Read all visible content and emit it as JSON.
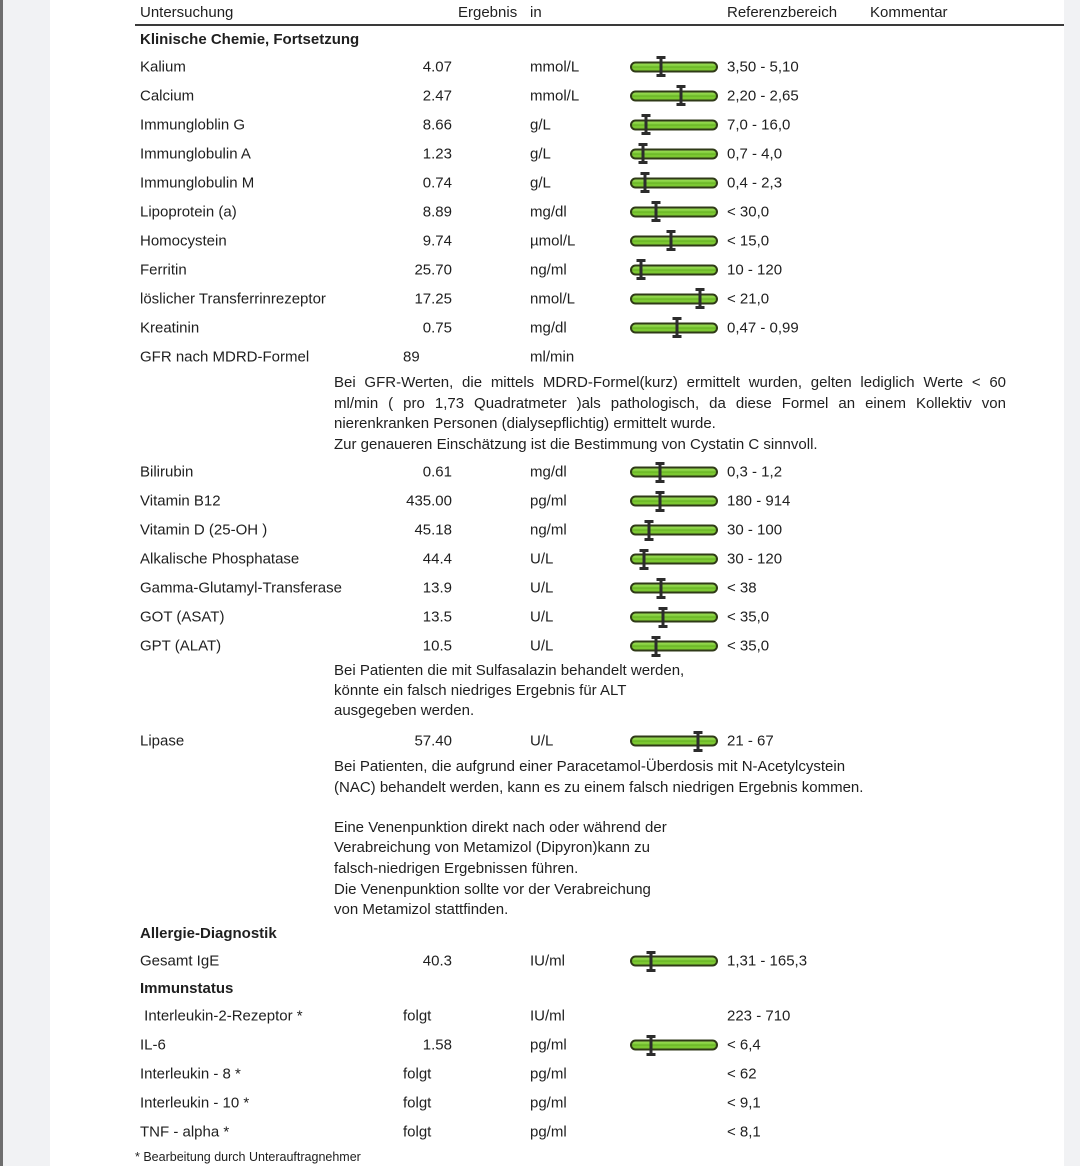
{
  "header": {
    "col_untersuchung": "Untersuchung",
    "col_ergebnis": "Ergebnis",
    "col_in": "in",
    "col_referenzbereich": "Referenzbereich",
    "col_kommentar": "Kommentar"
  },
  "colors": {
    "bar_fill": "#7cc832",
    "bar_border": "#2f3a17",
    "marker": "#2c2c2c",
    "text": "#1f1f1f",
    "page_margin": "#f1f2f4"
  },
  "rows": [
    {
      "type": "section",
      "label": "Klinische Chemie, Fortsetzung"
    },
    {
      "type": "result",
      "name": "Kalium",
      "value": "4.07",
      "unit": "mmol/L",
      "ref": "3,50 - 5,10",
      "marker": 0.35
    },
    {
      "type": "result",
      "name": "Calcium",
      "value": "2.47",
      "unit": "mmol/L",
      "ref": "2,20 - 2,65",
      "marker": 0.58
    },
    {
      "type": "result",
      "name": "Immungloblin G",
      "value": "8.66",
      "unit": "g/L",
      "ref": "7,0 - 16,0",
      "marker": 0.18
    },
    {
      "type": "result",
      "name": "Immunglobulin A",
      "value": "1.23",
      "unit": "g/L",
      "ref": "0,7 - 4,0",
      "marker": 0.15
    },
    {
      "type": "result",
      "name": "Immunglobulin M",
      "value": "0.74",
      "unit": "g/L",
      "ref": "0,4 - 2,3",
      "marker": 0.17
    },
    {
      "type": "result",
      "name": "Lipoprotein (a)",
      "value": "8.89",
      "unit": "mg/dl",
      "ref": "< 30,0",
      "marker": 0.29
    },
    {
      "type": "result",
      "name": "Homocystein",
      "value": "9.74",
      "unit": "µmol/L",
      "ref": "< 15,0",
      "marker": 0.46
    },
    {
      "type": "result",
      "name": "Ferritin",
      "value": "25.70",
      "unit": "ng/ml",
      "ref": "10 - 120",
      "marker": 0.13
    },
    {
      "type": "result",
      "name": "löslicher Transferrinrezeptor",
      "value": "17.25",
      "unit": "nmol/L",
      "ref": "< 21,0",
      "marker": 0.8
    },
    {
      "type": "result",
      "name": "Kreatinin",
      "value": "0.75",
      "unit": "mg/dl",
      "ref": "0,47 - 0,99",
      "marker": 0.53
    },
    {
      "type": "result",
      "name": "GFR nach MDRD-Formel",
      "value": "89",
      "unit": "ml/min",
      "ref": "",
      "marker": null,
      "value_align": "left"
    },
    {
      "type": "note",
      "style": "gfr",
      "lines": [
        "Bei GFR-Werten, die mittels MDRD-Formel(kurz) ermittelt wurden, gelten lediglich Werte < 60",
        "ml/min ( pro 1,73 Quadratmeter )als pathologisch, da diese Formel an einem Kollektiv von",
        "nierenkranken Personen (dialysepflichtig) ermittelt wurde.",
        "Zur genaueren Einschätzung ist die Bestimmung von Cystatin C sinnvoll."
      ]
    },
    {
      "type": "result",
      "name": "Bilirubin",
      "value": "0.61",
      "unit": "mg/dl",
      "ref": "0,3 - 1,2",
      "marker": 0.34
    },
    {
      "type": "result",
      "name": "Vitamin B12",
      "value": "435.00",
      "unit": "pg/ml",
      "ref": "180 - 914",
      "marker": 0.34
    },
    {
      "type": "result",
      "name": "Vitamin D (25-OH )",
      "value": "45.18",
      "unit": "ng/ml",
      "ref": "30 - 100",
      "marker": 0.22
    },
    {
      "type": "result",
      "name": "Alkalische Phosphatase",
      "value": "44.4",
      "unit": "U/L",
      "ref": "30 - 120",
      "marker": 0.16
    },
    {
      "type": "result",
      "name": "Gamma-Glutamyl-Transferase",
      "value": "13.9",
      "unit": "U/L",
      "ref": "< 38",
      "marker": 0.35
    },
    {
      "type": "result",
      "name": "GOT (ASAT)",
      "value": "13.5",
      "unit": "U/L",
      "ref": "< 35,0",
      "marker": 0.38
    },
    {
      "type": "result",
      "name": "GPT (ALAT)",
      "value": "10.5",
      "unit": "U/L",
      "ref": "< 35,0",
      "marker": 0.3
    },
    {
      "type": "note",
      "style": "alt",
      "lines": [
        "Bei Patienten die mit Sulfasalazin behandelt werden,",
        "könnte ein falsch niedriges Ergebnis für ALT",
        "ausgegeben werden."
      ]
    },
    {
      "type": "result",
      "name": "Lipase",
      "value": "57.40",
      "unit": "U/L",
      "ref": "21 - 67",
      "marker": 0.77
    },
    {
      "type": "note",
      "style": "lipase",
      "lines": [
        "Bei Patienten, die aufgrund einer Paracetamol-Überdosis mit N-Acetylcystein",
        "(NAC) behandelt werden, kann es zu einem falsch niedrigen Ergebnis kommen."
      ]
    },
    {
      "type": "note",
      "style": "metamizol",
      "lines": [
        "Eine Venenpunktion direkt nach oder während der",
        "Verabreichung von Metamizol (Dipyron)kann zu",
        "falsch-niedrigen Ergebnissen führen.",
        "Die Venenpunktion sollte vor der Verabreichung",
        "von Metamizol stattfinden."
      ]
    },
    {
      "type": "section",
      "label": "Allergie-Diagnostik"
    },
    {
      "type": "result",
      "name": "Gesamt IgE",
      "value": "40.3",
      "unit": "IU/ml",
      "ref": "1,31 - 165,3",
      "marker": 0.24
    },
    {
      "type": "section",
      "label": "Immunstatus"
    },
    {
      "type": "result",
      "name": " Interleukin-2-Rezeptor *",
      "value": "folgt",
      "unit": "IU/ml",
      "ref": "223 - 710",
      "marker": null,
      "value_align": "left"
    },
    {
      "type": "result",
      "name": "IL-6",
      "value": "1.58",
      "unit": "pg/ml",
      "ref": "< 6,4",
      "marker": 0.24
    },
    {
      "type": "result",
      "name": "Interleukin - 8 *",
      "value": "folgt",
      "unit": "pg/ml",
      "ref": "< 62",
      "marker": null,
      "value_align": "left"
    },
    {
      "type": "result",
      "name": "Interleukin - 10 *",
      "value": "folgt",
      "unit": "pg/ml",
      "ref": "< 9,1",
      "marker": null,
      "value_align": "left"
    },
    {
      "type": "result",
      "name": "TNF - alpha *",
      "value": "folgt",
      "unit": "pg/ml",
      "ref": "< 8,1",
      "marker": null,
      "value_align": "left"
    }
  ],
  "footer": {
    "note": "* Bearbeitung durch Unterauftragnehmer"
  }
}
